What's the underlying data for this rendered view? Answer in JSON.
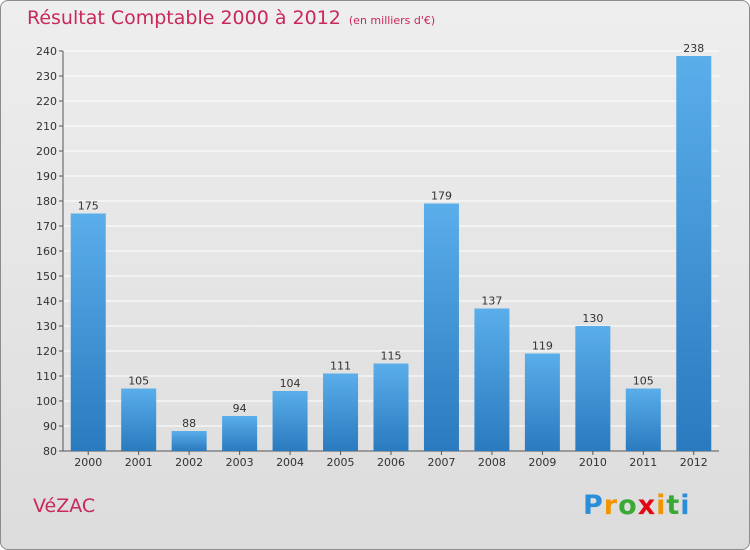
{
  "title": "Résultat Comptable 2000 à 2012",
  "subtitle": "(en milliers d'€)",
  "city": "VéZAC",
  "logo": {
    "letters": [
      "P",
      "r",
      "o",
      "x",
      "i",
      "t",
      "i"
    ],
    "colors": [
      "#2a8fd8",
      "#f29400",
      "#3aa935",
      "#e30613",
      "#f29400",
      "#3aa935",
      "#2a8fd8"
    ]
  },
  "colors": {
    "bar": "#3a8fd0",
    "bar_light": "#5aaeea",
    "text": "#c8285a",
    "grid": "#ffffff"
  },
  "chart_data": {
    "type": "bar",
    "title": "Résultat Comptable 2000 à 2012",
    "subtitle": "(en milliers d'€)",
    "xlabel": "",
    "ylabel": "",
    "categories": [
      "2000",
      "2001",
      "2002",
      "2003",
      "2004",
      "2005",
      "2006",
      "2007",
      "2008",
      "2009",
      "2010",
      "2011",
      "2012"
    ],
    "values": [
      175,
      105,
      88,
      94,
      104,
      111,
      115,
      179,
      137,
      119,
      130,
      105,
      238
    ],
    "ylim": [
      80,
      240
    ],
    "yticks": [
      80,
      90,
      100,
      110,
      120,
      130,
      140,
      150,
      160,
      170,
      180,
      190,
      200,
      210,
      220,
      230,
      240
    ],
    "grid": true,
    "legend": "none"
  }
}
